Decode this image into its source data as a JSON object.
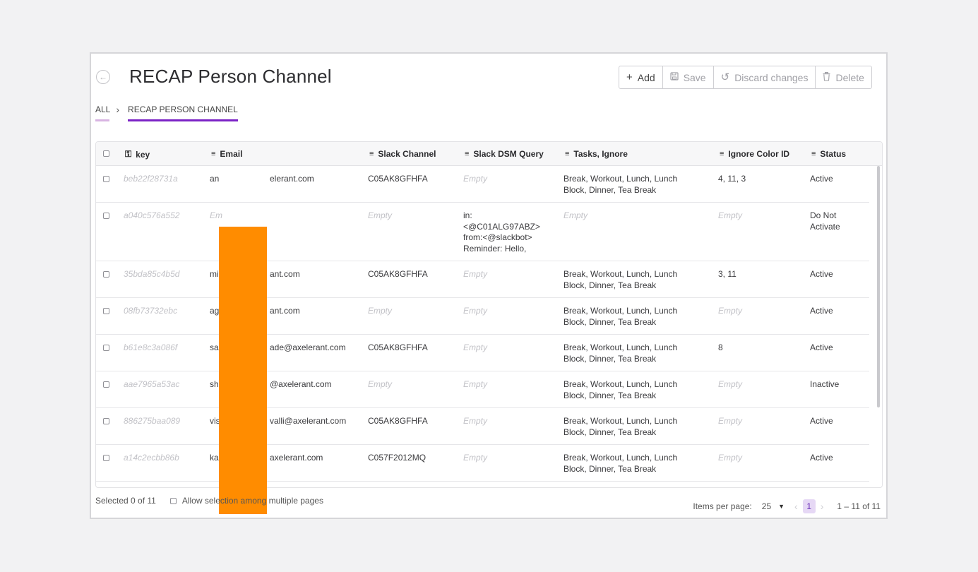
{
  "header": {
    "title": "RECAP Person Channel",
    "toolbar": {
      "add": "Add",
      "save": "Save",
      "discard": "Discard changes",
      "delete": "Delete"
    }
  },
  "breadcrumb": {
    "all": "ALL",
    "current": "RECAP PERSON CHANNEL"
  },
  "table": {
    "columns": {
      "key": "key",
      "email": "Email",
      "slack_channel": "Slack Channel",
      "slack_dsm_query": "Slack DSM Query",
      "tasks_ignore": "Tasks, Ignore",
      "ignore_color_id": "Ignore Color ID",
      "status": "Status"
    },
    "rows": [
      {
        "key": "beb22f28731a",
        "email": "an",
        "email_tail": "elerant.com",
        "channel": "C05AK8GFHFA",
        "query": "Empty",
        "tasks_1": "Break, Workout, Lunch, Lunch",
        "tasks_2": "Block, Dinner, Tea Break",
        "color": "4, 11, 3",
        "status": "Active"
      },
      {
        "key": "a040c576a552",
        "email": "Em",
        "email_tail": "",
        "channel": "Empty",
        "query_1": "in:",
        "query_2": "<@C01ALG97ABZ>",
        "query_3": "from:<@slackbot>",
        "query_4": "Reminder: Hello,",
        "tasks": "Empty",
        "color": "Empty",
        "status_1": "Do Not",
        "status_2": "Activate"
      },
      {
        "key": "35bda85c4b5d",
        "email": "mi",
        "email_tail": "ant.com",
        "channel": "C05AK8GFHFA",
        "query": "Empty",
        "tasks_1": "Break, Workout, Lunch, Lunch",
        "tasks_2": "Block, Dinner, Tea Break",
        "color": "3, 11",
        "status": "Active"
      },
      {
        "key": "08fb73732ebc",
        "email": "ag",
        "email_tail": "ant.com",
        "channel": "Empty",
        "query": "Empty",
        "tasks_1": "Break, Workout, Lunch, Lunch",
        "tasks_2": "Block, Dinner, Tea Break",
        "color": "Empty",
        "status": "Active"
      },
      {
        "key": "b61e8c3a086f",
        "email": "sa",
        "email_tail": "ade@axelerant.com",
        "channel": "C05AK8GFHFA",
        "query": "Empty",
        "tasks_1": "Break, Workout, Lunch, Lunch",
        "tasks_2": "Block, Dinner, Tea Break",
        "color": "8",
        "status": "Active"
      },
      {
        "key": "aae7965a53ac",
        "email": "sh",
        "email_tail": "@axelerant.com",
        "channel": "Empty",
        "query": "Empty",
        "tasks_1": "Break, Workout, Lunch, Lunch",
        "tasks_2": "Block, Dinner, Tea Break",
        "color": "Empty",
        "status": "Inactive"
      },
      {
        "key": "886275baa089",
        "email": "vis",
        "email_tail": "valli@axelerant.com",
        "channel": "C05AK8GFHFA",
        "query": "Empty",
        "tasks_1": "Break, Workout, Lunch, Lunch",
        "tasks_2": "Block, Dinner, Tea Break",
        "color": "Empty",
        "status": "Active"
      },
      {
        "key": "a14c2ecbb86b",
        "email": "ka",
        "email_tail": "axelerant.com",
        "channel": "C057F2012MQ",
        "query": "Empty",
        "tasks_1": "Break, Workout, Lunch, Lunch",
        "tasks_2": "Block, Dinner, Tea Break",
        "color": "Empty",
        "status": "Active"
      }
    ]
  },
  "footer": {
    "selected": "Selected 0 of 11",
    "allow_multi": "Allow selection among multiple pages",
    "items_per_page_label": "Items per page:",
    "items_per_page_value": "25",
    "current_page": "1",
    "range": "1 – 11 of 11"
  },
  "colors": {
    "accent": "#7b23c6",
    "redaction": "#ff8c00"
  },
  "icons": {
    "back": "back-arrow-icon",
    "add": "plus-icon",
    "save": "save-icon",
    "discard": "undo-icon",
    "delete": "trash-icon",
    "key_column": "key-icon",
    "sortable_columns": "lines-icon"
  }
}
